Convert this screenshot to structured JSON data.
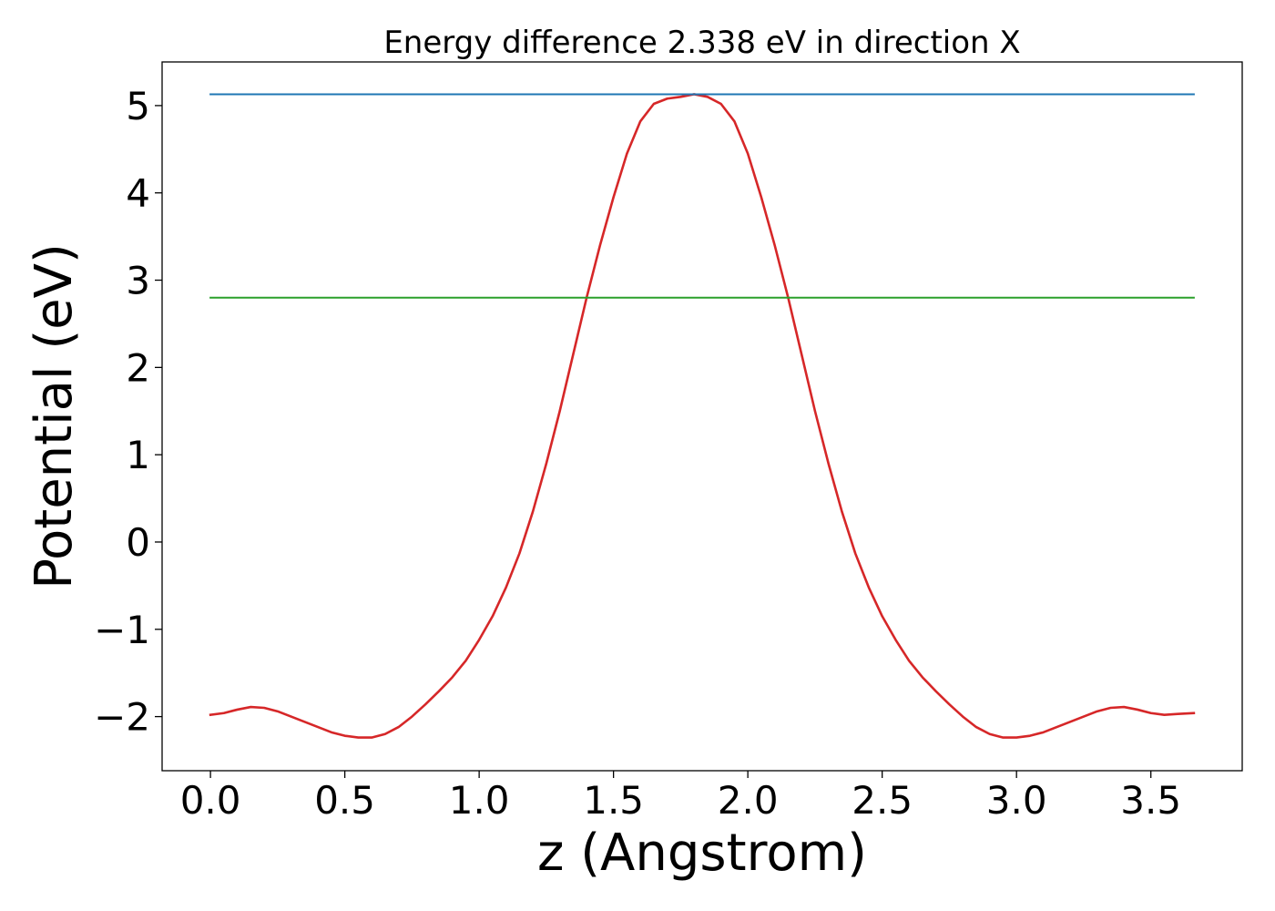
{
  "chart_data": {
    "type": "line",
    "title": "Energy difference 2.338 eV in direction X",
    "xlabel": "z (Angstrom)",
    "ylabel": "Potential (eV)",
    "xlim": [
      -0.18,
      3.84
    ],
    "ylim": [
      -2.62,
      5.5
    ],
    "x_ticks": [
      0.0,
      0.5,
      1.0,
      1.5,
      2.0,
      2.5,
      3.0,
      3.5
    ],
    "x_tick_labels": [
      "0.0",
      "0.5",
      "1.0",
      "1.5",
      "2.0",
      "2.5",
      "3.0",
      "3.5"
    ],
    "y_ticks": [
      -2,
      -1,
      0,
      1,
      2,
      3,
      4,
      5
    ],
    "y_tick_labels": [
      "−2",
      "−1",
      "0",
      "1",
      "2",
      "3",
      "4",
      "5"
    ],
    "grid": false,
    "legend": "none",
    "series": [
      {
        "color": "#d62728",
        "kind": "curve",
        "x": [
          0.0,
          0.05,
          0.1,
          0.15,
          0.2,
          0.25,
          0.3,
          0.35,
          0.4,
          0.45,
          0.5,
          0.55,
          0.6,
          0.65,
          0.7,
          0.75,
          0.8,
          0.85,
          0.9,
          0.95,
          1.0,
          1.05,
          1.1,
          1.15,
          1.2,
          1.25,
          1.3,
          1.35,
          1.4,
          1.45,
          1.5,
          1.55,
          1.6,
          1.65,
          1.7,
          1.75,
          1.8,
          1.85,
          1.9,
          1.95,
          2.0,
          2.05,
          2.1,
          2.15,
          2.2,
          2.25,
          2.3,
          2.35,
          2.4,
          2.45,
          2.5,
          2.55,
          2.6,
          2.65,
          2.7,
          2.75,
          2.8,
          2.85,
          2.9,
          2.95,
          3.0,
          3.05,
          3.1,
          3.15,
          3.2,
          3.25,
          3.3,
          3.35,
          3.4,
          3.45,
          3.5,
          3.55,
          3.6,
          3.66
        ],
        "y": [
          -1.98,
          -1.96,
          -1.92,
          -1.89,
          -1.9,
          -1.94,
          -2.0,
          -2.06,
          -2.12,
          -2.18,
          -2.22,
          -2.24,
          -2.24,
          -2.2,
          -2.12,
          -2.0,
          -1.86,
          -1.71,
          -1.55,
          -1.36,
          -1.12,
          -0.85,
          -0.52,
          -0.13,
          0.35,
          0.9,
          1.5,
          2.15,
          2.8,
          3.4,
          3.95,
          4.45,
          4.82,
          5.02,
          5.08,
          5.1,
          5.13,
          5.1,
          5.02,
          4.82,
          4.45,
          3.95,
          3.4,
          2.8,
          2.15,
          1.5,
          0.9,
          0.35,
          -0.13,
          -0.52,
          -0.85,
          -1.12,
          -1.36,
          -1.55,
          -1.71,
          -1.86,
          -2.0,
          -2.12,
          -2.2,
          -2.24,
          -2.24,
          -2.22,
          -2.18,
          -2.12,
          -2.06,
          -2.0,
          -1.94,
          -1.9,
          -1.89,
          -1.92,
          -1.96,
          -1.98,
          -1.97,
          -1.96
        ]
      },
      {
        "color": "#1f77b4",
        "kind": "hline",
        "x": [
          0.0,
          3.66
        ],
        "y": [
          5.13,
          5.13
        ]
      },
      {
        "color": "#2ca02c",
        "kind": "hline",
        "x": [
          0.0,
          3.66
        ],
        "y": [
          2.8,
          2.8
        ]
      }
    ]
  }
}
